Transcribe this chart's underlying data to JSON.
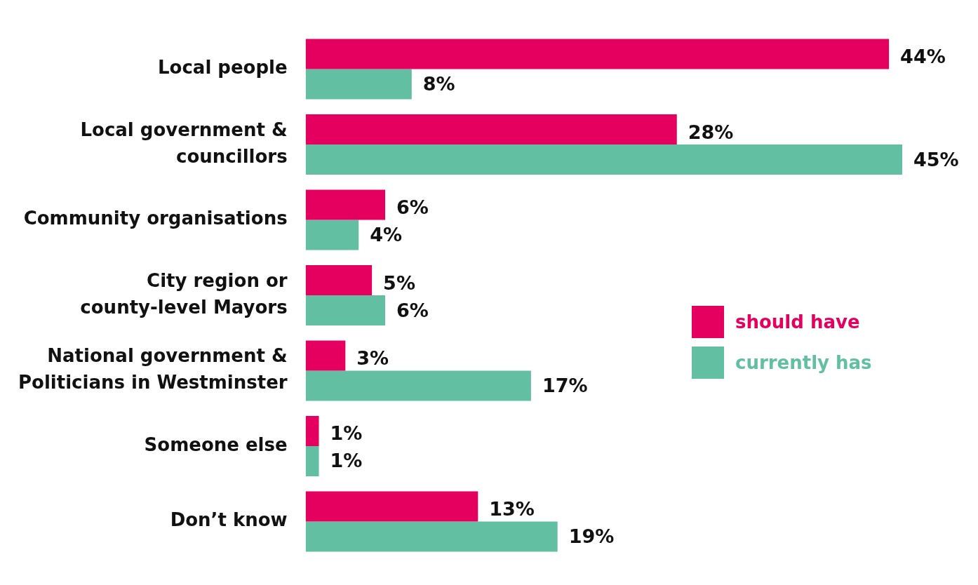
{
  "chart_data": {
    "type": "bar",
    "orientation": "horizontal",
    "categories": [
      "Local people",
      "Local government & councillors",
      "Community organisations",
      "City region or county-level Mayors",
      "National government & Politicians in Westminster",
      "Someone else",
      "Don’t know"
    ],
    "series": [
      {
        "name": "should have",
        "color": "#e5005f",
        "values": [
          44,
          28,
          6,
          5,
          3,
          1,
          13
        ],
        "value_labels": [
          "44%",
          "28%",
          "6%",
          "5%",
          "3%",
          "1%",
          "13%"
        ]
      },
      {
        "name": "currently has",
        "color": "#63bfa2",
        "values": [
          8,
          45,
          4,
          6,
          17,
          1,
          19
        ],
        "value_labels": [
          "8%",
          "45%",
          "4%",
          "6%",
          "17%",
          "1%",
          "19%"
        ]
      }
    ],
    "legend": "right",
    "grid": false
  }
}
